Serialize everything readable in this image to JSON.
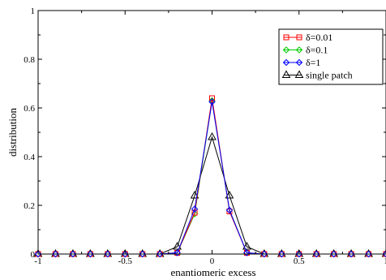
{
  "chart_data": {
    "type": "line",
    "title": "",
    "xlabel": "enantiomeric excess",
    "ylabel": "distribution",
    "xlim": [
      -1,
      1
    ],
    "ylim": [
      0,
      1
    ],
    "xticks": [
      -1,
      -0.5,
      0,
      0.5,
      1
    ],
    "xtick_labels": [
      "-1",
      "-0.5",
      "0",
      "0.5",
      "1"
    ],
    "yticks": [
      0,
      0.2,
      0.4,
      0.6,
      0.8,
      1
    ],
    "ytick_labels": [
      "0",
      "0.2",
      "0.4",
      "0.6",
      "0.8",
      "1"
    ],
    "grid": false,
    "legend_position": "top-right",
    "x": [
      -1,
      -0.9,
      -0.8,
      -0.7,
      -0.6,
      -0.5,
      -0.4,
      -0.3,
      -0.2,
      -0.1,
      0,
      0.1,
      0.2,
      0.3,
      0.4,
      0.5,
      0.6,
      0.7,
      0.8,
      0.9,
      1
    ],
    "series": [
      {
        "name": "δ=0.01",
        "color": "#ff0000",
        "marker": "square",
        "values": [
          0,
          0,
          0,
          0,
          0,
          0,
          0,
          0,
          0.005,
          0.17,
          0.64,
          0.175,
          0.005,
          0,
          0,
          0,
          0,
          0,
          0,
          0,
          0
        ]
      },
      {
        "name": "δ=0.1",
        "color": "#00cc00",
        "marker": "diamond",
        "values": [
          0,
          0,
          0,
          0,
          0,
          0,
          0,
          0,
          0.005,
          0.165,
          0.63,
          0.18,
          0.005,
          0,
          0,
          0,
          0,
          0,
          0,
          0,
          0
        ]
      },
      {
        "name": "δ=1",
        "color": "#0000ff",
        "marker": "diamond",
        "values": [
          0,
          0,
          0,
          0,
          0,
          0,
          0,
          0,
          0.005,
          0.185,
          0.625,
          0.18,
          0.005,
          0,
          0,
          0,
          0,
          0,
          0,
          0,
          0
        ]
      },
      {
        "name": "single patch",
        "color": "#000000",
        "marker": "triangle",
        "values": [
          0,
          0,
          0,
          0,
          0,
          0,
          0,
          0,
          0.03,
          0.24,
          0.48,
          0.24,
          0.03,
          0,
          0,
          0,
          0,
          0,
          0,
          0,
          0
        ]
      }
    ]
  }
}
